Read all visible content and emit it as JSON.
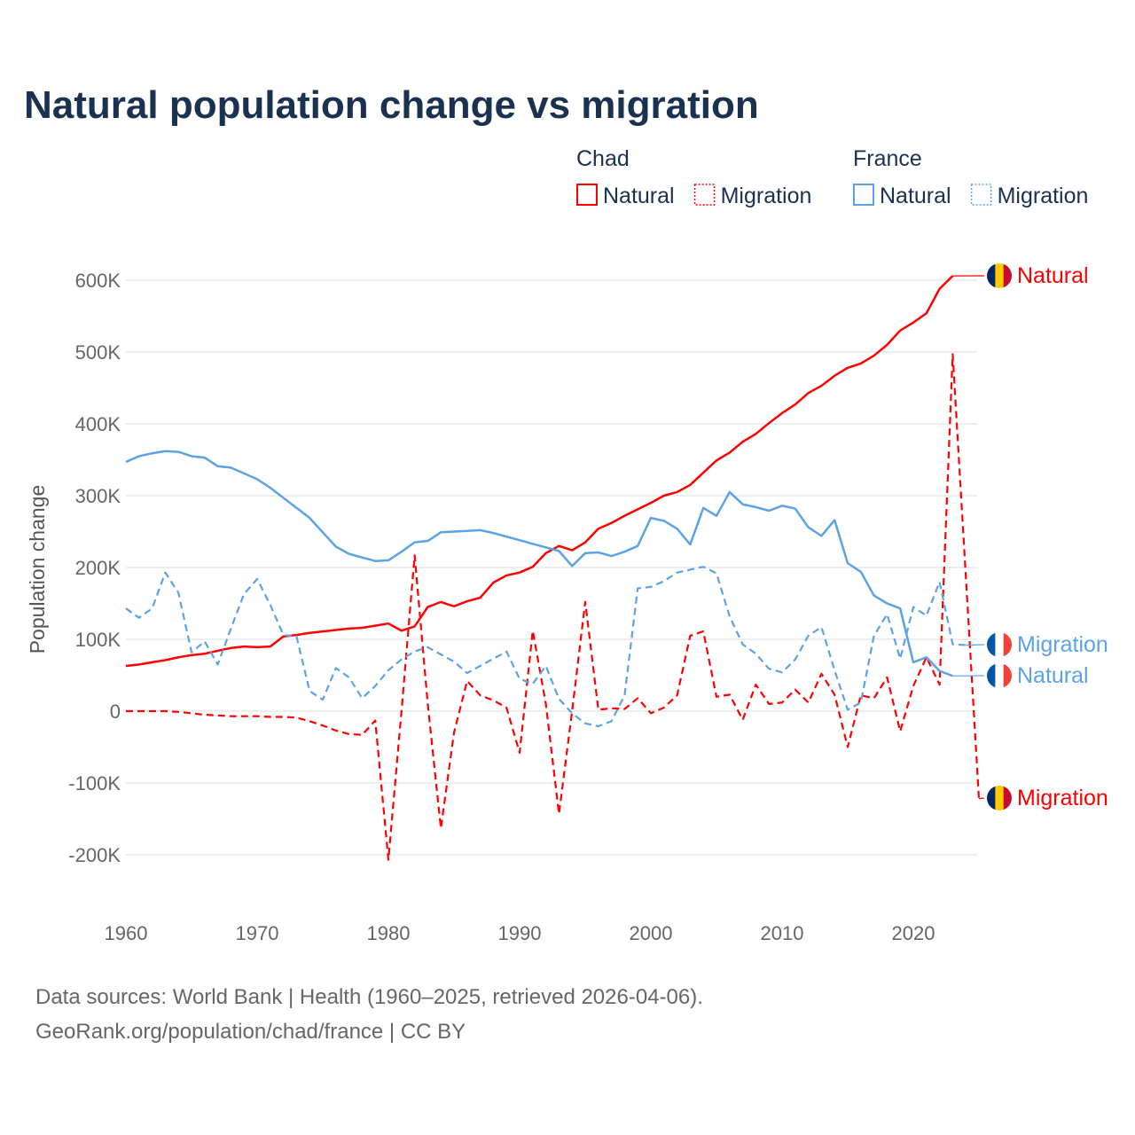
{
  "chart_data": {
    "type": "line",
    "title": "Natural population change vs migration",
    "ylabel": "Population change",
    "xlabel": "",
    "xlim": [
      1960,
      2025
    ],
    "ylim": [
      -250000,
      650000
    ],
    "x_ticks": [
      "1960",
      "1970",
      "1980",
      "1990",
      "2000",
      "2010",
      "2020"
    ],
    "y_ticks": [
      {
        "v": 600000,
        "label": "600K"
      },
      {
        "v": 500000,
        "label": "500K"
      },
      {
        "v": 400000,
        "label": "400K"
      },
      {
        "v": 300000,
        "label": "300K"
      },
      {
        "v": 200000,
        "label": "200K"
      },
      {
        "v": 100000,
        "label": "100K"
      },
      {
        "v": 0,
        "label": "0"
      },
      {
        "v": -100000,
        "label": "-100K"
      },
      {
        "v": -200000,
        "label": "-200K"
      }
    ],
    "grid": true,
    "legend_groups": [
      {
        "name": "Chad",
        "items": [
          "Natural",
          "Migration"
        ]
      },
      {
        "name": "France",
        "items": [
          "Natural",
          "Migration"
        ]
      }
    ],
    "legend_placement": "top-right",
    "colors": {
      "chad": "#ff0000",
      "france": "#5ba3e6"
    },
    "series": [
      {
        "name": "Chad Natural",
        "end_label": "Natural",
        "country": "chad",
        "dash": false,
        "start": 1960,
        "values": [
          63,
          65,
          68,
          71,
          75,
          78,
          80,
          84,
          88,
          90,
          89,
          90,
          104,
          106,
          109,
          111,
          113,
          115,
          116,
          119,
          122,
          112,
          118,
          145,
          152,
          146,
          153,
          158,
          179,
          189,
          193,
          201,
          220,
          230,
          224,
          235,
          254,
          262,
          272,
          281,
          290,
          300,
          305,
          315,
          332,
          349,
          360,
          375,
          386,
          401,
          415,
          427,
          443,
          453,
          467,
          478,
          484,
          495,
          510,
          530,
          541,
          554,
          588,
          606
        ]
      },
      {
        "name": "Chad Migration",
        "end_label": "Migration",
        "country": "chad",
        "dash": true,
        "start": 1960,
        "values": [
          0,
          0,
          0,
          0,
          -1,
          -3,
          -5,
          -6,
          -7,
          -7,
          -7,
          -8,
          -8,
          -9,
          -14,
          -20,
          -27,
          -32,
          -33,
          -13,
          -207,
          0,
          217,
          10,
          -163,
          -30,
          42,
          22,
          15,
          5,
          -58,
          112,
          10,
          -143,
          0,
          152,
          2,
          4,
          3,
          18,
          -3,
          5,
          22,
          105,
          111,
          20,
          23,
          -12,
          37,
          10,
          12,
          30,
          12,
          52,
          23,
          -50,
          22,
          18,
          47,
          -28,
          35,
          75,
          37,
          497,
          188,
          -122
        ]
      },
      {
        "name": "France Natural",
        "end_label": "Natural",
        "country": "france",
        "dash": false,
        "start": 1960,
        "values": [
          347,
          355,
          359,
          362,
          361,
          355,
          353,
          341,
          339,
          331,
          323,
          311,
          297,
          283,
          269,
          249,
          229,
          219,
          214,
          209,
          210,
          222,
          235,
          237,
          249,
          250,
          251,
          252,
          248,
          243,
          238,
          233,
          228,
          223,
          202,
          220,
          221,
          216,
          222,
          230,
          269,
          265,
          254,
          232,
          283,
          272,
          305,
          288,
          284,
          279,
          286,
          282,
          256,
          244,
          266,
          206,
          194,
          161,
          150,
          143,
          68,
          75,
          56,
          49
        ]
      },
      {
        "name": "France Migration",
        "end_label": "Migration",
        "country": "france",
        "dash": true,
        "start": 1960,
        "values": [
          143,
          130,
          143,
          193,
          165,
          82,
          97,
          65,
          115,
          163,
          184,
          148,
          106,
          104,
          28,
          16,
          60,
          47,
          18,
          35,
          57,
          72,
          83,
          89,
          79,
          69,
          53,
          63,
          73,
          83,
          45,
          38,
          63,
          17,
          -3,
          -17,
          -21,
          -14,
          22,
          171,
          173,
          181,
          193,
          197,
          201,
          192,
          132,
          93,
          80,
          59,
          54,
          72,
          105,
          117,
          57,
          2,
          12,
          105,
          135,
          73,
          145,
          133,
          180,
          93,
          92
        ]
      }
    ],
    "value_unit": "thousands"
  },
  "footer": {
    "line1": "Data sources: World Bank | Health (1960–2025, retrieved 2026-04-06).",
    "line2": "GeoRank.org/population/chad/france | CC BY"
  }
}
